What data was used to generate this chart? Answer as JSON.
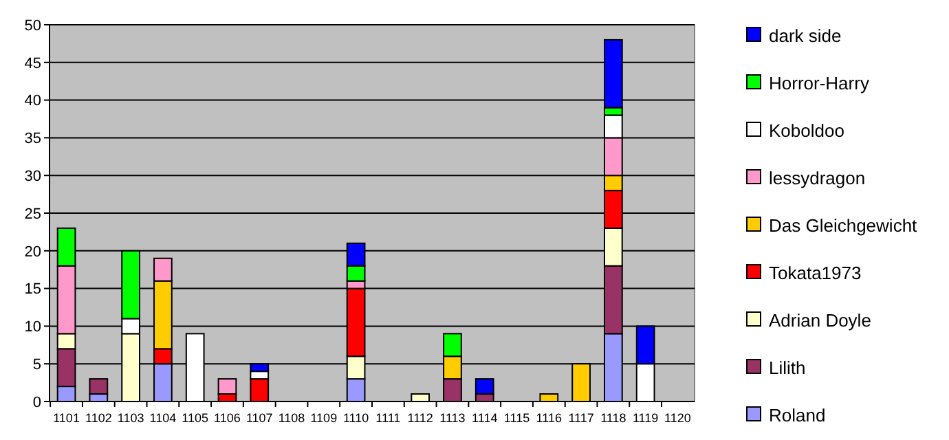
{
  "chart_data": {
    "type": "bar",
    "stacked": true,
    "categories": [
      "1101",
      "1102",
      "1103",
      "1104",
      "1105",
      "1106",
      "1107",
      "1108",
      "1109",
      "1110",
      "1111",
      "1112",
      "1113",
      "1114",
      "1115",
      "1116",
      "1117",
      "1118",
      "1119",
      "1120"
    ],
    "series": [
      {
        "name": "Roland",
        "color": "#9999ff",
        "values": [
          2,
          1,
          null,
          5,
          null,
          null,
          null,
          null,
          null,
          3,
          null,
          null,
          null,
          null,
          null,
          null,
          null,
          9,
          null,
          null
        ]
      },
      {
        "name": "Lilith",
        "color": "#993366",
        "values": [
          5,
          2,
          null,
          null,
          null,
          null,
          null,
          null,
          null,
          null,
          null,
          null,
          3,
          1,
          null,
          null,
          null,
          9,
          null,
          null
        ]
      },
      {
        "name": "Adrian Doyle",
        "color": "#ffffcc",
        "values": [
          2,
          null,
          9,
          null,
          null,
          null,
          null,
          null,
          null,
          3,
          null,
          1,
          null,
          null,
          null,
          null,
          null,
          5,
          null,
          null
        ]
      },
      {
        "name": "Tokata1973",
        "color": "#ff0000",
        "values": [
          null,
          null,
          null,
          2,
          null,
          1,
          3,
          null,
          null,
          9,
          null,
          null,
          null,
          null,
          null,
          null,
          null,
          5,
          null,
          null
        ]
      },
      {
        "name": "Das Gleichgewicht",
        "color": "#ffcc00",
        "values": [
          null,
          null,
          null,
          9,
          null,
          null,
          null,
          null,
          null,
          null,
          null,
          null,
          3,
          null,
          null,
          1,
          5,
          2,
          null,
          null
        ]
      },
      {
        "name": "lessydragon",
        "color": "#ff99cc",
        "values": [
          9,
          null,
          null,
          3,
          null,
          2,
          null,
          null,
          null,
          1,
          null,
          null,
          null,
          null,
          null,
          null,
          null,
          5,
          null,
          null
        ]
      },
      {
        "name": "Koboldoo",
        "color": "#ffffff",
        "values": [
          null,
          null,
          2,
          null,
          9,
          null,
          1,
          null,
          null,
          null,
          null,
          null,
          null,
          null,
          null,
          null,
          null,
          3,
          5,
          null
        ]
      },
      {
        "name": "Horror-Harry",
        "color": "#00ff00",
        "values": [
          5,
          null,
          9,
          null,
          null,
          null,
          null,
          null,
          null,
          2,
          null,
          null,
          3,
          null,
          null,
          null,
          null,
          1,
          null,
          null
        ]
      },
      {
        "name": "dark side",
        "color": "#0000ff",
        "values": [
          null,
          null,
          null,
          null,
          null,
          null,
          1,
          null,
          null,
          3,
          null,
          null,
          null,
          2,
          null,
          null,
          null,
          9,
          5,
          null
        ]
      }
    ],
    "ylim": [
      0,
      50
    ],
    "yticks": [
      0,
      5,
      10,
      15,
      20,
      25,
      30,
      35,
      40,
      45,
      50
    ],
    "grid": "y",
    "legend": "right"
  }
}
